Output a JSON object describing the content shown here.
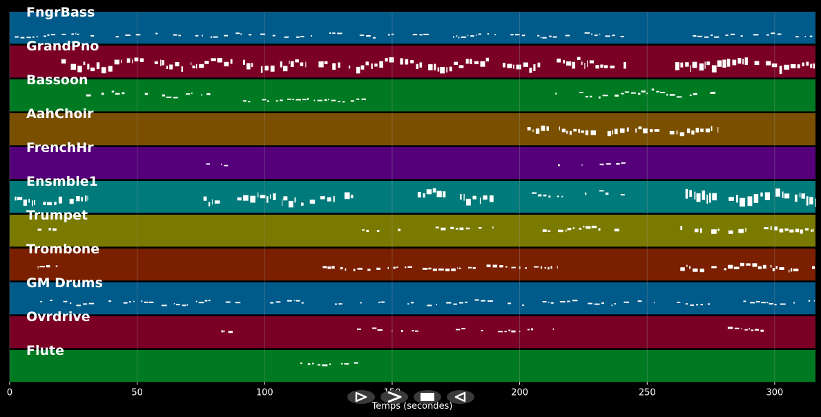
{
  "colors": {
    "background": "#000000",
    "note": "#ffffff",
    "grid": "#9a9a9a",
    "control_bg": "#3a3a3a",
    "control_fg": "#ffffff"
  },
  "axis": {
    "xlabel": "Temps (secondes)",
    "xlim": [
      0,
      316
    ],
    "ticks": [
      0,
      50,
      100,
      150,
      200,
      250,
      300
    ],
    "tick_labels": [
      "0",
      "50",
      "100",
      "150",
      "200",
      "250",
      "300"
    ]
  },
  "tracks": [
    {
      "name": "FngrBass",
      "color": "#005a8a",
      "segments": [
        [
          2,
          242,
          0.72,
          0.08,
          2,
          0.5
        ],
        [
          261,
          316,
          0.7,
          0.1,
          2,
          0.5
        ]
      ]
    },
    {
      "name": "GrandPno",
      "color": "#7a0026",
      "segments": [
        [
          18,
          242,
          0.52,
          0.18,
          10,
          0.8
        ],
        [
          261,
          316,
          0.5,
          0.15,
          12,
          0.9
        ]
      ]
    },
    {
      "name": "Bassoon",
      "color": "#007a22",
      "segments": [
        [
          30,
          79,
          0.45,
          0.12,
          3,
          0.6
        ],
        [
          89,
          140,
          0.62,
          0.08,
          3,
          0.6
        ],
        [
          214,
          278,
          0.42,
          0.14,
          3,
          0.6
        ]
      ]
    },
    {
      "name": "AahChoir",
      "color": "#7a5000",
      "segments": [
        [
          203,
          278,
          0.5,
          0.12,
          8,
          0.8
        ]
      ]
    },
    {
      "name": "FrenchHr",
      "color": "#55007a",
      "segments": [
        [
          77,
          90,
          0.52,
          0.05,
          3,
          0.6
        ],
        [
          215,
          242,
          0.52,
          0.06,
          3,
          0.6
        ]
      ]
    },
    {
      "name": "Ensmble1",
      "color": "#007a7a",
      "segments": [
        [
          2,
          31,
          0.55,
          0.15,
          10,
          0.8
        ],
        [
          76,
          135,
          0.5,
          0.18,
          10,
          0.7
        ],
        [
          160,
          190,
          0.4,
          0.18,
          10,
          0.7
        ],
        [
          203,
          242,
          0.38,
          0.1,
          4,
          0.6
        ],
        [
          265,
          316,
          0.4,
          0.18,
          14,
          0.9
        ]
      ]
    },
    {
      "name": "Trumpet",
      "color": "#7a7a00",
      "segments": [
        [
          11,
          19,
          0.42,
          0.04,
          4,
          0.7
        ],
        [
          134,
          160,
          0.45,
          0.03,
          4,
          0.5
        ],
        [
          167,
          190,
          0.38,
          0.07,
          4,
          0.6
        ],
        [
          209,
          240,
          0.42,
          0.08,
          4,
          0.6
        ],
        [
          263,
          316,
          0.42,
          0.08,
          7,
          0.7
        ]
      ]
    },
    {
      "name": "Trombone",
      "color": "#7a2000",
      "segments": [
        [
          11,
          19,
          0.55,
          0.04,
          4,
          0.7
        ],
        [
          122,
          183,
          0.58,
          0.06,
          4,
          0.6
        ],
        [
          187,
          215,
          0.55,
          0.05,
          4,
          0.6
        ],
        [
          263,
          316,
          0.55,
          0.12,
          6,
          0.7
        ]
      ]
    },
    {
      "name": "GM Drums",
      "color": "#005a8a",
      "segments": [
        [
          12,
          316,
          0.62,
          0.1,
          2,
          0.5
        ]
      ]
    },
    {
      "name": "Ovrdrive",
      "color": "#7a0026",
      "segments": [
        [
          83,
          88,
          0.45,
          0.03,
          3,
          0.6
        ],
        [
          134,
          215,
          0.42,
          0.07,
          3,
          0.6
        ],
        [
          277,
          296,
          0.38,
          0.06,
          3,
          0.6
        ]
      ]
    },
    {
      "name": "Flute",
      "color": "#007a22",
      "segments": [
        [
          114,
          142,
          0.4,
          0.05,
          3,
          0.6
        ]
      ]
    }
  ],
  "controls": [
    {
      "name": "play-button",
      "glyph": "play"
    },
    {
      "name": "forward-button",
      "glyph": "forward"
    },
    {
      "name": "stop-button",
      "glyph": "stop"
    },
    {
      "name": "rewind-button",
      "glyph": "rewind"
    }
  ]
}
